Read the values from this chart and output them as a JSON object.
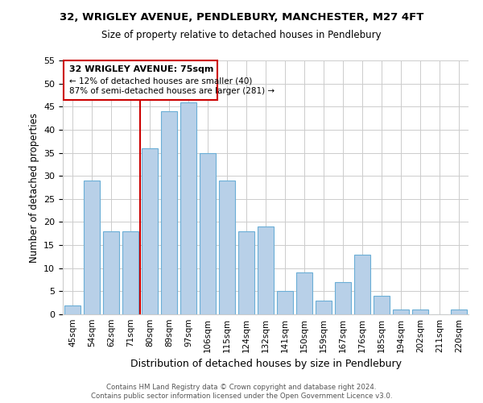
{
  "title": "32, WRIGLEY AVENUE, PENDLEBURY, MANCHESTER, M27 4FT",
  "subtitle": "Size of property relative to detached houses in Pendlebury",
  "xlabel": "Distribution of detached houses by size in Pendlebury",
  "ylabel": "Number of detached properties",
  "categories": [
    "45sqm",
    "54sqm",
    "62sqm",
    "71sqm",
    "80sqm",
    "89sqm",
    "97sqm",
    "106sqm",
    "115sqm",
    "124sqm",
    "132sqm",
    "141sqm",
    "150sqm",
    "159sqm",
    "167sqm",
    "176sqm",
    "185sqm",
    "194sqm",
    "202sqm",
    "211sqm",
    "220sqm"
  ],
  "values": [
    2,
    29,
    18,
    18,
    36,
    44,
    46,
    35,
    29,
    18,
    19,
    5,
    9,
    3,
    7,
    13,
    4,
    1,
    1,
    0,
    1
  ],
  "bar_color": "#b8d0e8",
  "bar_edge_color": "#6baed6",
  "ylim": [
    0,
    55
  ],
  "yticks": [
    0,
    5,
    10,
    15,
    20,
    25,
    30,
    35,
    40,
    45,
    50,
    55
  ],
  "marker_label": "32 WRIGLEY AVENUE: 75sqm",
  "annotation_line1": "← 12% of detached houses are smaller (40)",
  "annotation_line2": "87% of semi-detached houses are larger (281) →",
  "annotation_box_color": "#ffffff",
  "annotation_box_edge": "#cc0000",
  "marker_line_color": "#cc0000",
  "footer_line1": "Contains HM Land Registry data © Crown copyright and database right 2024.",
  "footer_line2": "Contains public sector information licensed under the Open Government Licence v3.0.",
  "bg_color": "#ffffff",
  "grid_color": "#cccccc"
}
